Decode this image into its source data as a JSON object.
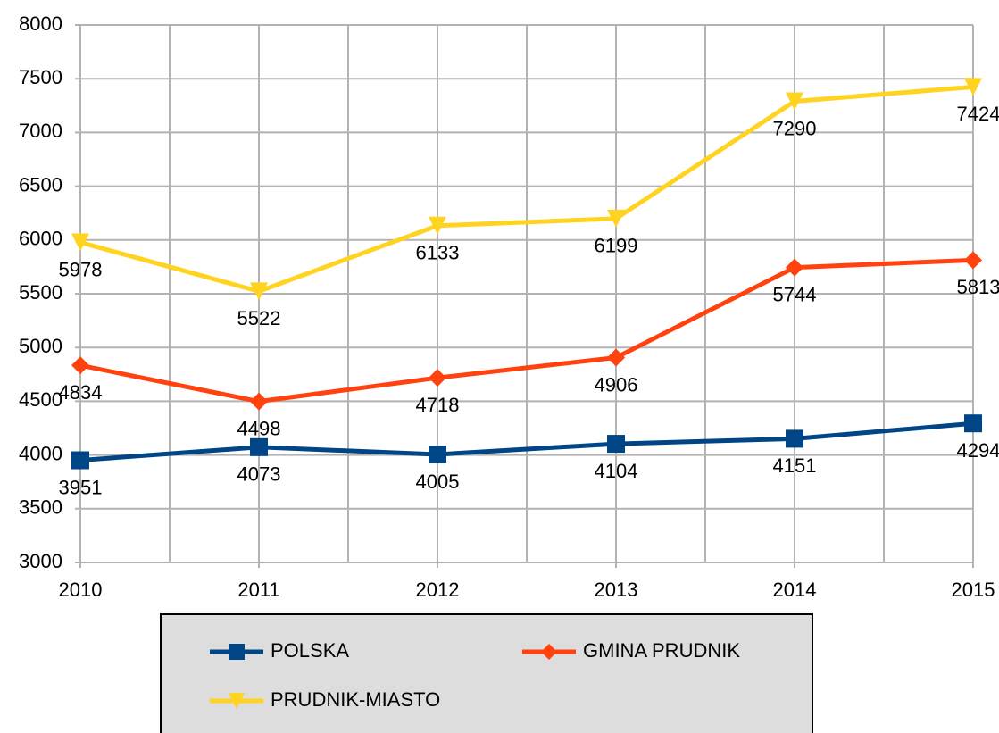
{
  "chart_data": {
    "type": "line",
    "categories": [
      "2010",
      "2011",
      "2012",
      "2013",
      "2014",
      "2015"
    ],
    "series": [
      {
        "name": "POLSKA",
        "color": "#004586",
        "marker": "square",
        "values": [
          3951,
          4073,
          4005,
          4104,
          4151,
          4294
        ]
      },
      {
        "name": "GMINA PRUDNIK",
        "color": "#ff420e",
        "marker": "diamond",
        "values": [
          4834,
          4498,
          4718,
          4906,
          5744,
          5813
        ]
      },
      {
        "name": "PRUDNIK-MIASTO",
        "color": "#ffd320",
        "marker": "triangle-down",
        "values": [
          5978,
          5522,
          6133,
          6199,
          7290,
          7424
        ]
      }
    ],
    "ylim": [
      3000,
      8000
    ],
    "yticks": [
      3000,
      3500,
      4000,
      4500,
      5000,
      5500,
      6000,
      6500,
      7000,
      7500,
      8000
    ],
    "grid": true
  }
}
